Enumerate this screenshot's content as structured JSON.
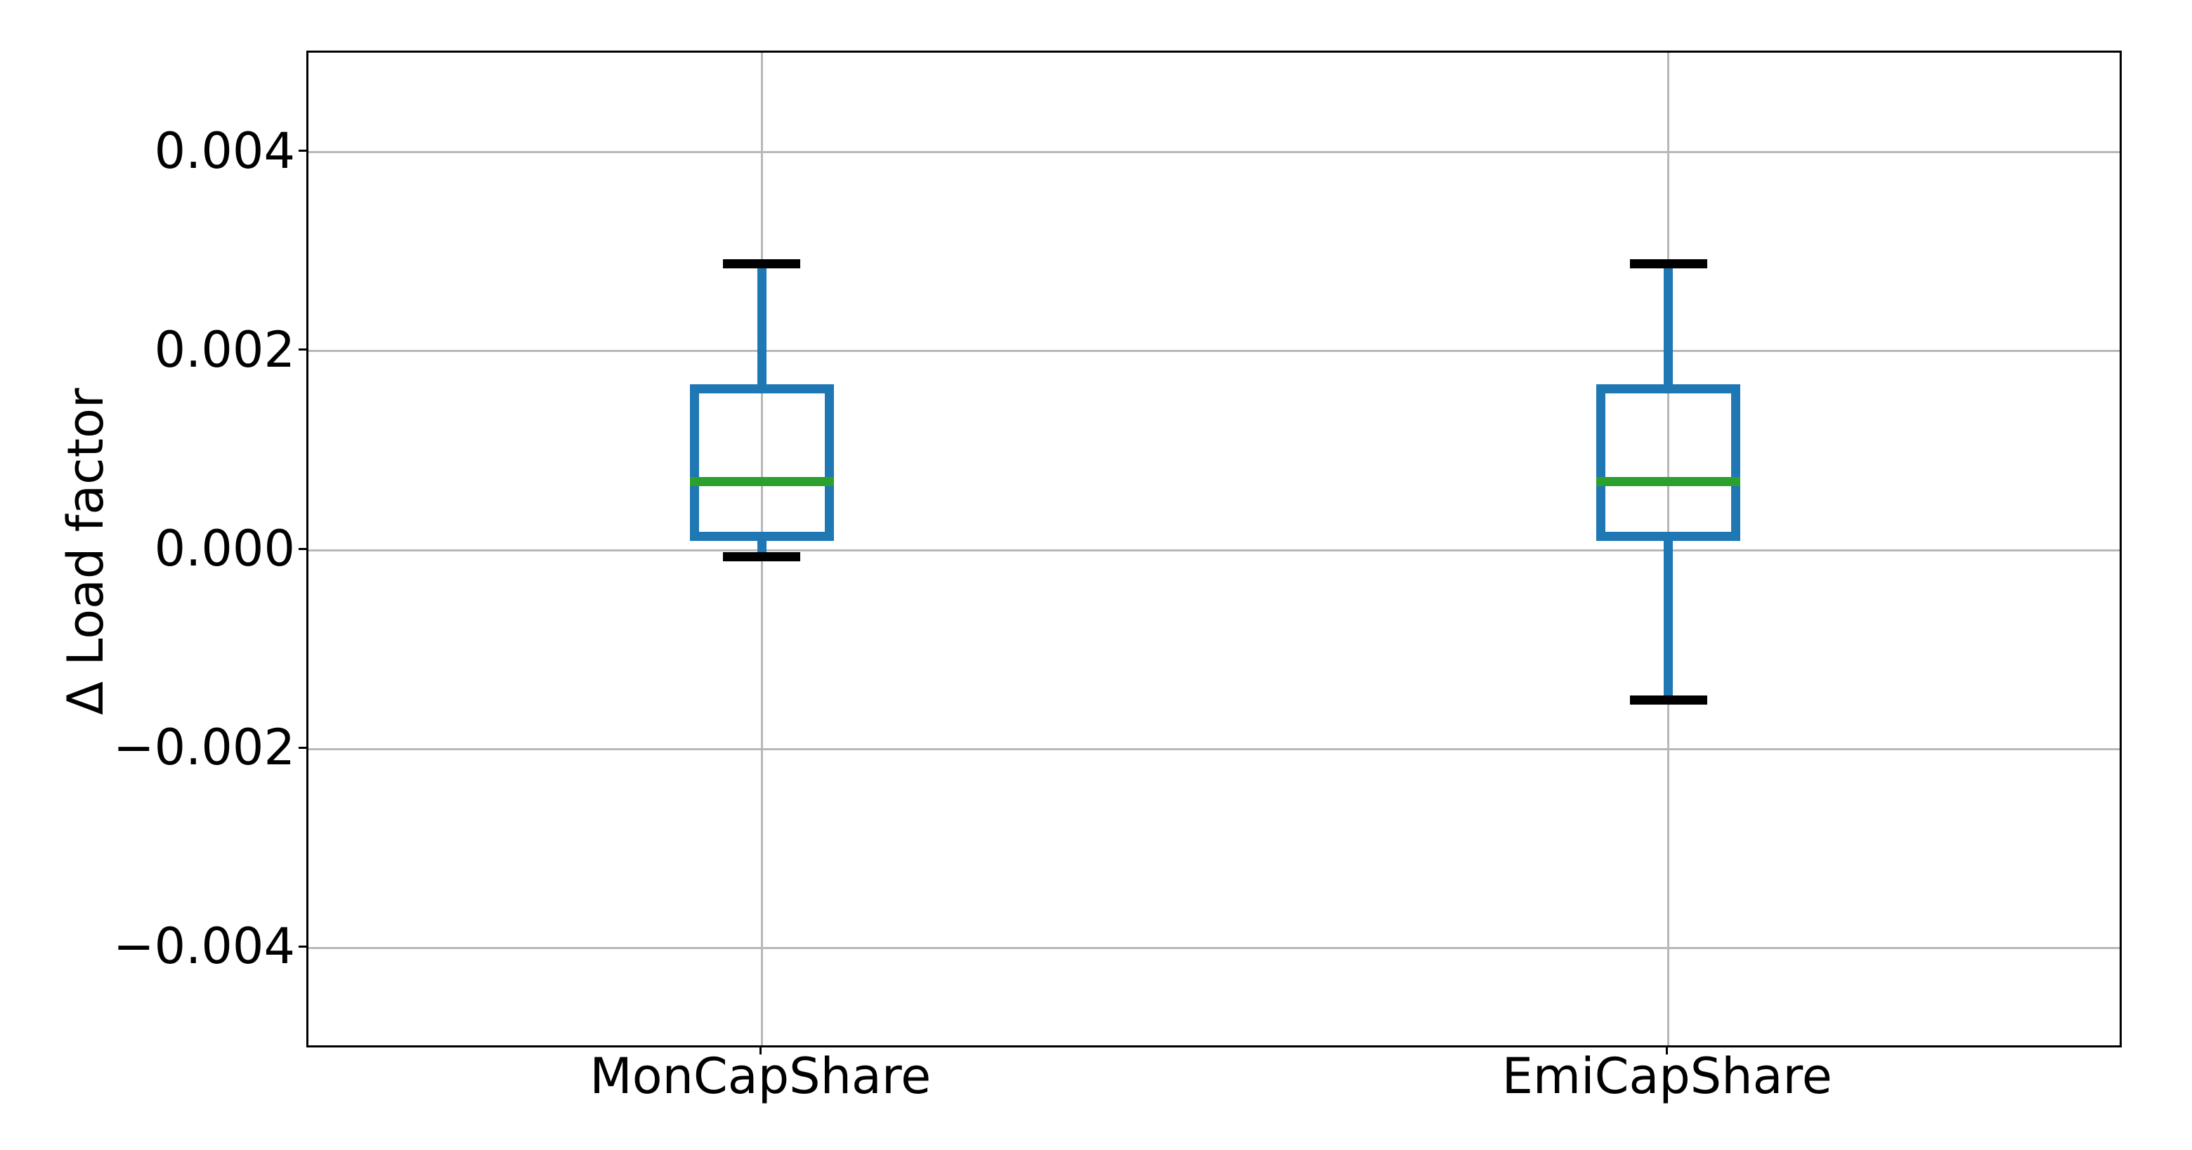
{
  "figure": {
    "ylabel": "Δ Load factor",
    "colors": {
      "box": "#1f77b4",
      "median": "#2ca02c",
      "whisker": "#1f77b4",
      "cap": "#000000",
      "grid": "#b8b8b8",
      "spine": "#000000",
      "text": "#000000",
      "background": "#ffffff"
    }
  },
  "chart_data": {
    "type": "boxplot",
    "title": "",
    "xlabel": "",
    "ylabel": "Δ Load factor",
    "categories": [
      "MonCapShare",
      "EmiCapShare"
    ],
    "series": [
      {
        "name": "MonCapShare",
        "whisker_low": -7e-05,
        "q1": 0.00014,
        "median": 0.00069,
        "q3": 0.00162,
        "whisker_high": 0.00288
      },
      {
        "name": "EmiCapShare",
        "whisker_low": -0.00151,
        "q1": 0.00014,
        "median": 0.00069,
        "q3": 0.00162,
        "whisker_high": 0.00288
      }
    ],
    "ylim": [
      -0.005,
      0.005
    ],
    "yticks": [
      {
        "value": 0.004,
        "label": "0.004"
      },
      {
        "value": 0.002,
        "label": "0.002"
      },
      {
        "value": 0.0,
        "label": "0.000"
      },
      {
        "value": -0.002,
        "label": "−0.002"
      },
      {
        "value": -0.004,
        "label": "−0.004"
      }
    ],
    "grid": true,
    "legend": false
  }
}
